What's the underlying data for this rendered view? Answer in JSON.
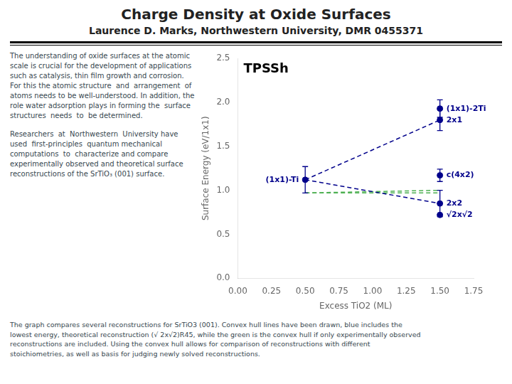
{
  "chart_data": {
    "type": "scatter",
    "title": "Charge Density at Oxide Surfaces",
    "subtitle": "Laurence D. Marks, Northwestern University, DMR 0455371",
    "text_blocks": [
      "The understanding of oxide surfaces at the atomic scale is crucial for the development of applications such as catalysis, thin film growth and corrosion.  For this the atomic structure  and  arrangement  of  atoms needs to be well-understood. In addition, the role water adsorption plays in forming the  surface  structures  needs  to  be determined.",
      "Researchers  at  Northwestern  University have  used  first-principles  quantum mechanical computations  to  characterize and compare experimentally observed and theoretical surface reconstructions of the SrTiO₃ (001) surface."
    ],
    "caption": "The graph compares several reconstructions for SrTiO3 (001). Convex hull lines have been drawn, blue includes the\nlowest energy, theoretical reconstruction (√ 2x√2)R45, while the green is the convex hull if only experimentally observed\nreconstructions are included. Using the convex hull allows for comparison of reconstructions with different\nstoichiometries, as well as basis for judging newly solved reconstructions.",
    "annotations": [
      "TPSSh"
    ],
    "xlabel": "Excess TiO2 (ML)",
    "ylabel": "Surface Energy (eV/1x1)",
    "xlim": [
      0,
      1.75
    ],
    "ylim": [
      0.0,
      2.5
    ],
    "xticks": [
      {
        "value": 0,
        "label": "0.00"
      },
      {
        "value": 0.25,
        "label": "0.25"
      },
      {
        "value": 0.5,
        "label": "0.50"
      },
      {
        "value": 0.75,
        "label": "0.75"
      },
      {
        "value": 1,
        "label": "1.00"
      },
      {
        "value": 1.25,
        "label": "1.25"
      },
      {
        "value": 1.5,
        "label": "1.50"
      },
      {
        "value": 1.75,
        "label": "1.75"
      }
    ],
    "yticks": [
      {
        "value": 0.0,
        "label": "0.0"
      },
      {
        "value": 0.5,
        "label": "0.5"
      },
      {
        "value": 1.0,
        "label": "1.0"
      },
      {
        "value": 1.5,
        "label": "1.5"
      },
      {
        "value": 2.0,
        "label": "2.0"
      },
      {
        "value": 2.5,
        "label": "2.5"
      }
    ],
    "grid": false,
    "series": [
      {
        "type": "line",
        "line_style": "dashed",
        "color": "#00008B",
        "x": [
          0.5,
          1.5
        ],
        "values": [
          1.12,
          0.85
        ]
      },
      {
        "type": "line",
        "line_style": "dashed",
        "color": "#00008B",
        "x": [
          0.5,
          1.5
        ],
        "values": [
          1.12,
          1.8
        ]
      },
      {
        "type": "line",
        "line_style": "dashed",
        "color": "#4caf50",
        "x": [
          0.5,
          1.5
        ],
        "values": [
          0.97,
          1.0
        ]
      },
      {
        "type": "line",
        "line_style": "dashed",
        "color": "#4caf50",
        "x": [
          0.5,
          1.5
        ],
        "values": [
          0.97,
          0.97
        ]
      },
      {
        "type": "scatter",
        "marker": "circle",
        "color": "#00008B",
        "x": [
          0.5,
          1.5,
          1.5,
          1.5,
          1.5,
          1.5
        ],
        "values": [
          1.12,
          1.93,
          1.17,
          0.85,
          1.8,
          0.72
        ],
        "errors": [
          0.15,
          0.1,
          0.07,
          0.15,
          0.12,
          0.0
        ],
        "point_labels": [
          "(1x1)-Ti",
          "(1x1)-2Ti",
          "c(4x2)",
          "2x2",
          "2x1",
          "√2x√2"
        ]
      }
    ]
  }
}
